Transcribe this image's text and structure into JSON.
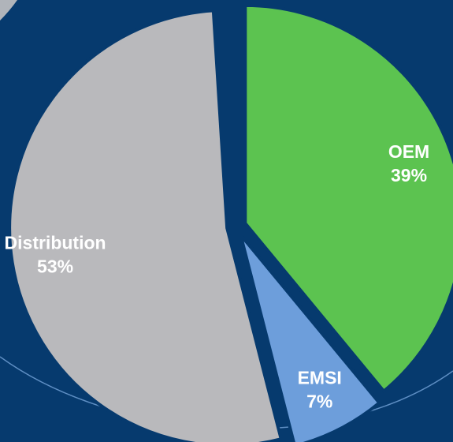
{
  "chart_data": {
    "type": "pie",
    "categories": [
      "OEM",
      "EMSI",
      "Distribution"
    ],
    "values": [
      39,
      7,
      53
    ],
    "value_labels": [
      "39%",
      "7%",
      "53%"
    ],
    "colors": [
      "#5cc350",
      "#6d9edb",
      "#b9b9bc"
    ]
  }
}
